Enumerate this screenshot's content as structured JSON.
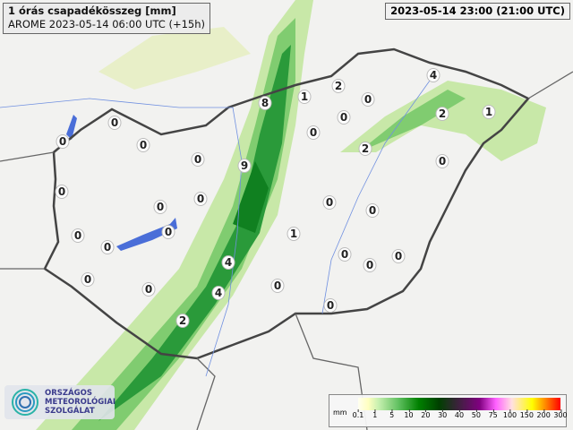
{
  "header": {
    "title": "1 órás csapadékösszeg [mm]",
    "subtitle": "AROME 2023-05-14 06:00 UTC (+15h)",
    "valid_time": "2023-05-14 23:00 (21:00 UTC)"
  },
  "logo": {
    "line1": "ORSZÁGOS",
    "line2": "METEOROLÓGIAI",
    "line3": "SZOLGÁLAT"
  },
  "legend": {
    "unit": "mm",
    "ticks": [
      "0.1",
      "1",
      "5",
      "10",
      "20",
      "30",
      "40",
      "50",
      "75",
      "100",
      "150",
      "200",
      "300"
    ],
    "colors": [
      "#fffff0",
      "#ffffc0",
      "#c8f0b0",
      "#60c060",
      "#008000",
      "#004000",
      "#402040",
      "#800080",
      "#ff60ff",
      "#ffe0e0",
      "#ffff00",
      "#ff8000",
      "#ff0000"
    ]
  },
  "map_values": [
    "0",
    "0",
    "0",
    "0",
    "0",
    "0",
    "0",
    "0",
    "0",
    "0",
    "0",
    "0",
    "8",
    "1",
    "2",
    "0",
    "4",
    "2",
    "1",
    "0",
    "0",
    "2",
    "0",
    "9",
    "0",
    "0",
    "1",
    "0",
    "0",
    "0",
    "4",
    "4",
    "0",
    "0",
    "2"
  ],
  "colors": {
    "background": "#f2f2f0",
    "border": "#444444",
    "lake": "#4a6ed8",
    "rain_light": "#c8e8a8",
    "rain_mid": "#60c060",
    "rain_heavy": "#008000"
  }
}
